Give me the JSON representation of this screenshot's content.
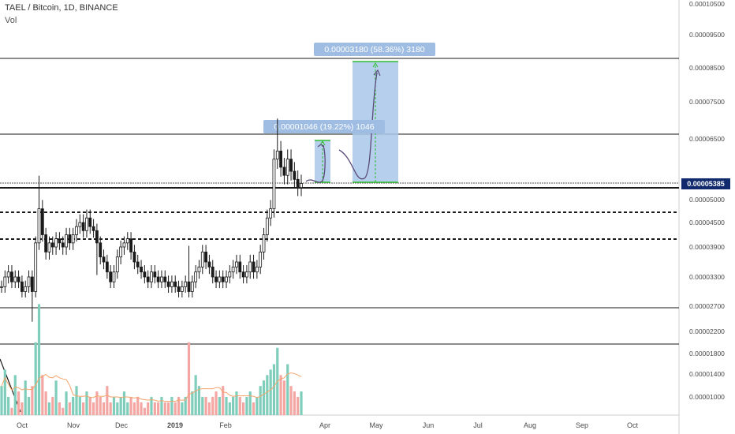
{
  "header": {
    "title": "TAEL / Bitcoin, 1D, BINANCE",
    "indicator": "Vol"
  },
  "colors": {
    "candle": "#1a1a1a",
    "vol_up": "#7fcdbb",
    "vol_down": "#f4a6a3",
    "vol_ma": "#f4a46a",
    "measure_fill": "#a9c7ea",
    "measure_label": "#9fbde3",
    "price_tag": "#102a6d",
    "border_green": "#2fbf2f"
  },
  "chart_data": {
    "type": "candlestick",
    "title": "TAEL / Bitcoin, 1D, BINANCE",
    "y_ticks": [
      "0.00010500",
      "0.00009500",
      "0.00008500",
      "0.00007500",
      "0.00006500",
      "0.00005000",
      "0.00004500",
      "0.00003900",
      "0.00003300",
      "0.00002700",
      "0.00002200",
      "0.00001800",
      "0.00001400",
      "0.00001000"
    ],
    "x_ticks": [
      "Oct",
      "Nov",
      "Dec",
      "2019",
      "Feb",
      "Apr",
      "May",
      "Jun",
      "Jul",
      "Aug",
      "Sep",
      "Oct"
    ],
    "last_price": "0.00005385",
    "horizontal_levels": [
      6.6e-05,
      5.4e-05,
      4.8e-05,
      4.2e-05
    ],
    "close_series": [
      3.1e-05,
      3.3e-05,
      3.4e-05,
      3.2e-05,
      3.3e-05,
      3.2e-05,
      3e-05,
      3.1e-05,
      3.3e-05,
      3e-05,
      4e-05,
      4.8e-05,
      4.2e-05,
      3.8e-05,
      4e-05,
      3.9e-05,
      4.1e-05,
      4e-05,
      3.9e-05,
      4.2e-05,
      4e-05,
      4.2e-05,
      4.4e-05,
      4.5e-05,
      4.3e-05,
      4.6e-05,
      4.4e-05,
      4.3e-05,
      4e-05,
      3.7e-05,
      3.6e-05,
      3.4e-05,
      3.2e-05,
      3.4e-05,
      3.7e-05,
      3.9e-05,
      4e-05,
      4.1e-05,
      3.8e-05,
      3.6e-05,
      3.5e-05,
      3.4e-05,
      3.3e-05,
      3.2e-05,
      3.4e-05,
      3.3e-05,
      3.2e-05,
      3.3e-05,
      3.2e-05,
      3.1e-05,
      3.2e-05,
      3.1e-05,
      3e-05,
      3.1e-05,
      3.2e-05,
      3e-05,
      3.2e-05,
      3.4e-05,
      3.5e-05,
      3.8e-05,
      3.6e-05,
      3.5e-05,
      3.3e-05,
      3.2e-05,
      3.3e-05,
      3.2e-05,
      3.3e-05,
      3.4e-05,
      3.5e-05,
      3.6e-05,
      3.4e-05,
      3.3e-05,
      3.4e-05,
      3.6e-05,
      3.4e-05,
      3.5e-05,
      3.8e-05,
      4.2e-05,
      4.6e-05,
      4.8e-05,
      6e-05,
      6.2e-05,
      5.8e-05,
      5.6e-05,
      6e-05,
      5.7e-05,
      5.5e-05,
      5.3e-05,
      5.4e-05
    ],
    "volume_series": [
      1.2e-06,
      1.5e-06,
      1e-06,
      8e-07,
      1.4e-06,
      1.1e-06,
      9e-07,
      1.3e-06,
      1e-06,
      1.2e-06,
      2e-06,
      2.7e-06,
      1.4e-06,
      1.1e-06,
      9e-07,
      1e-06,
      1.3e-06,
      9e-07,
      8e-07,
      1.1e-06,
      9e-07,
      1e-06,
      1.2e-06,
      1e-06,
      9e-07,
      1.1e-06,
      1e-06,
      9e-07,
      1.1e-06,
      1e-06,
      9e-07,
      1.2e-06,
      9e-07,
      1e-06,
      9e-07,
      1e-06,
      1.1e-06,
      9e-07,
      1e-06,
      9e-07,
      1e-06,
      9e-07,
      8e-07,
      9e-07,
      1e-06,
      9e-07,
      9e-07,
      1e-06,
      9e-07,
      9e-07,
      1e-06,
      9e-07,
      1e-06,
      9e-07,
      1e-06,
      2e-06,
      1.1e-06,
      1.4e-06,
      1.2e-06,
      1e-06,
      1e-06,
      9e-07,
      1e-06,
      1.1e-06,
      1e-06,
      1.2e-06,
      1e-06,
      9e-07,
      1e-06,
      1.1e-06,
      1e-06,
      9e-07,
      1e-06,
      1.1e-06,
      9e-07,
      1e-06,
      1.2e-06,
      1.3e-06,
      1.4e-06,
      1.5e-06,
      1.6e-06,
      1.9e-06,
      1.4e-06,
      1.3e-06,
      1.6e-06,
      1.2e-06,
      1.1e-06,
      1e-06,
      1.1e-06
    ],
    "measurements": [
      {
        "label": "0.00001046 (19.22%) 1046",
        "from": 5.45e-05,
        "to": 6.5e-05
      },
      {
        "label": "0.00003180 (58.36%) 3180",
        "from": 5.45e-05,
        "to": 8.63e-05
      }
    ]
  }
}
